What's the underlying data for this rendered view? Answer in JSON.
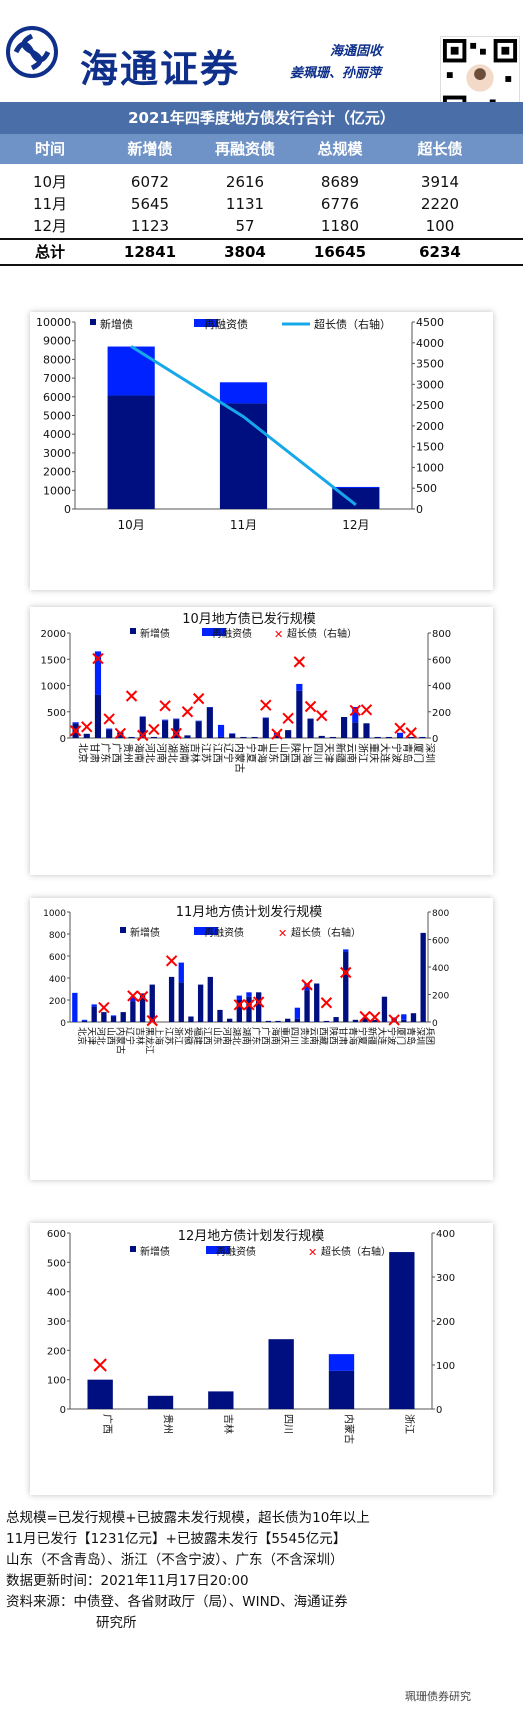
{
  "header": {
    "brand": "海通证券",
    "team": "海通固收",
    "authors": "姜珮珊、孙丽萍"
  },
  "table": {
    "title": "2021年四季度地方债发行合计（亿元）",
    "columns": [
      "时间",
      "新增债",
      "再融资债",
      "总规模",
      "超长债"
    ],
    "rows": [
      [
        "10月",
        "6072",
        "2616",
        "8689",
        "3914"
      ],
      [
        "11月",
        "5645",
        "1131",
        "6776",
        "2220"
      ],
      [
        "12月",
        "1123",
        "57",
        "1180",
        "100"
      ]
    ],
    "total": [
      "总计",
      "12841",
      "3804",
      "16645",
      "6234"
    ]
  },
  "colors": {
    "new": "#000f80",
    "refinance": "#0022ff",
    "ultra_line": "#16a8e8",
    "marker": "#ff0000",
    "header": "#4a6ea7",
    "subheader": "#6f93c6"
  },
  "chart_data": [
    {
      "type": "bar",
      "stacked": true,
      "categories": [
        "10月",
        "11月",
        "12月"
      ],
      "series": [
        {
          "name": "新增债",
          "values": [
            6072,
            5645,
            1123
          ]
        },
        {
          "name": "再融资债",
          "values": [
            2616,
            1131,
            57
          ]
        },
        {
          "name": "超长债（右轴）",
          "axis": "right",
          "kind": "line",
          "values": [
            3914,
            2220,
            100
          ]
        }
      ],
      "ylim": [
        0,
        10000
      ],
      "yticks": [
        0,
        1000,
        2000,
        3000,
        4000,
        5000,
        6000,
        7000,
        8000,
        9000,
        10000
      ],
      "y2lim": [
        0,
        4500
      ],
      "y2ticks": [
        0,
        500,
        1000,
        1500,
        2000,
        2500,
        3000,
        3500,
        4000,
        4500
      ],
      "legend": "top"
    },
    {
      "type": "bar",
      "stacked": true,
      "title": "10月地方债已发行规模",
      "categories": [
        "北京",
        "甘肃",
        "广东",
        "广西",
        "贵州",
        "海南",
        "河北",
        "河南",
        "湖北",
        "湖南",
        "吉林",
        "江苏",
        "江西",
        "辽宁",
        "内蒙古",
        "宁夏",
        "青海",
        "山东",
        "山西",
        "陕西",
        "上海",
        "四川",
        "天津",
        "新疆",
        "云南",
        "浙江",
        "重庆",
        "大连",
        "宁波",
        "青岛",
        "厦门",
        "深圳"
      ],
      "series": [
        {
          "name": "新增债",
          "values": [
            280,
            80,
            820,
            160,
            100,
            20,
            400,
            20,
            330,
            360,
            50,
            320,
            580,
            20,
            80,
            20,
            20,
            380,
            70,
            150,
            900,
            370,
            40,
            20,
            400,
            300,
            280,
            20,
            20,
            20,
            20,
            20
          ]
        },
        {
          "name": "再融资债",
          "values": [
            20,
            0,
            830,
            20,
            20,
            0,
            10,
            0,
            20,
            10,
            0,
            10,
            10,
            230,
            10,
            0,
            0,
            10,
            30,
            0,
            130,
            0,
            0,
            0,
            0,
            290,
            0,
            0,
            0,
            80,
            0,
            0
          ]
        },
        {
          "name": "超长债（右轴）",
          "axis": "right",
          "kind": "marker",
          "values": [
            55,
            85,
            605,
            145,
            35,
            320,
            20,
            65,
            245,
            35,
            200,
            300,
            0,
            0,
            0,
            0,
            0,
            250,
            30,
            150,
            580,
            240,
            170,
            0,
            0,
            210,
            215,
            0,
            0,
            75,
            40,
            0
          ]
        }
      ],
      "ylim": [
        0,
        2000
      ],
      "yticks": [
        0,
        500,
        1000,
        1500,
        2000
      ],
      "y2lim": [
        0,
        800
      ],
      "y2ticks": [
        0,
        200,
        400,
        600,
        800
      ]
    },
    {
      "type": "bar",
      "stacked": true,
      "title": "11月地方债计划发行规模",
      "categories": [
        "北京",
        "天津",
        "河北",
        "山西",
        "内蒙古",
        "辽宁",
        "吉林",
        "黑龙江",
        "上海",
        "江苏",
        "浙江",
        "安徽",
        "福建",
        "江西",
        "山东",
        "河南",
        "湖北",
        "湖南",
        "广东",
        "广西",
        "海南",
        "重庆",
        "四川",
        "贵州",
        "云南",
        "西藏",
        "陕西",
        "甘肃",
        "青海",
        "宁夏",
        "新疆",
        "大连",
        "宁波",
        "厦门",
        "青岛",
        "深圳",
        "兵团"
      ],
      "series": [
        {
          "name": "新增债",
          "values": [
            0,
            10,
            140,
            90,
            50,
            90,
            190,
            260,
            340,
            0,
            410,
            360,
            50,
            340,
            410,
            110,
            30,
            200,
            230,
            270,
            10,
            10,
            30,
            30,
            290,
            350,
            10,
            45,
            640,
            20,
            40,
            20,
            230,
            40,
            20,
            80,
            810
          ]
        },
        {
          "name": "再融资债",
          "values": [
            265,
            10,
            20,
            0,
            10,
            0,
            40,
            0,
            0,
            0,
            0,
            180,
            0,
            0,
            0,
            0,
            0,
            40,
            40,
            0,
            0,
            0,
            0,
            100,
            60,
            0,
            0,
            0,
            20,
            0,
            0,
            0,
            0,
            0,
            50,
            0,
            0
          ]
        },
        {
          "name": "超长债（右轴）",
          "axis": "right",
          "kind": "marker",
          "values": [
            0,
            0,
            0,
            105,
            0,
            0,
            190,
            185,
            10,
            0,
            445,
            0,
            0,
            0,
            0,
            0,
            0,
            125,
            125,
            145,
            0,
            0,
            0,
            0,
            270,
            0,
            140,
            0,
            360,
            0,
            40,
            35,
            0,
            15,
            0,
            0,
            0
          ]
        }
      ],
      "ylim": [
        0,
        1000
      ],
      "yticks": [
        0,
        200,
        400,
        600,
        800,
        1000
      ],
      "y2lim": [
        0,
        800
      ],
      "y2ticks": [
        0,
        200,
        400,
        600,
        800
      ]
    },
    {
      "type": "bar",
      "stacked": true,
      "title": "12月地方债计划发行规模",
      "categories": [
        "广西",
        "贵州",
        "吉林",
        "四川",
        "内蒙古",
        "浙江"
      ],
      "series": [
        {
          "name": "新增债",
          "values": [
            100,
            45,
            60,
            238,
            130,
            535
          ]
        },
        {
          "name": "再融资债",
          "values": [
            0,
            0,
            0,
            0,
            57,
            0
          ]
        },
        {
          "name": "超长债（右轴）",
          "axis": "right",
          "kind": "marker",
          "values": [
            100,
            null,
            null,
            null,
            null,
            null
          ]
        }
      ],
      "ylim": [
        0,
        600
      ],
      "yticks": [
        0,
        100,
        200,
        300,
        400,
        500,
        600
      ],
      "y2lim": [
        0,
        400
      ],
      "y2ticks": [
        0,
        100,
        200,
        300,
        400
      ]
    }
  ],
  "notes": [
    "总规模=已发行规模+已披露未发行规模，超长债为10年以上",
    "11月已发行【1231亿元】+已披露未发行【5545亿元】",
    "山东（不含青岛）、浙江（不含宁波）、广东（不含深圳）",
    "数据更新时间：2021年11月17日20:00",
    "资料来源：中债登、各省财政厅（局）、WIND、海通证券",
    "研究所"
  ],
  "watermark": "珮珊债券研究"
}
